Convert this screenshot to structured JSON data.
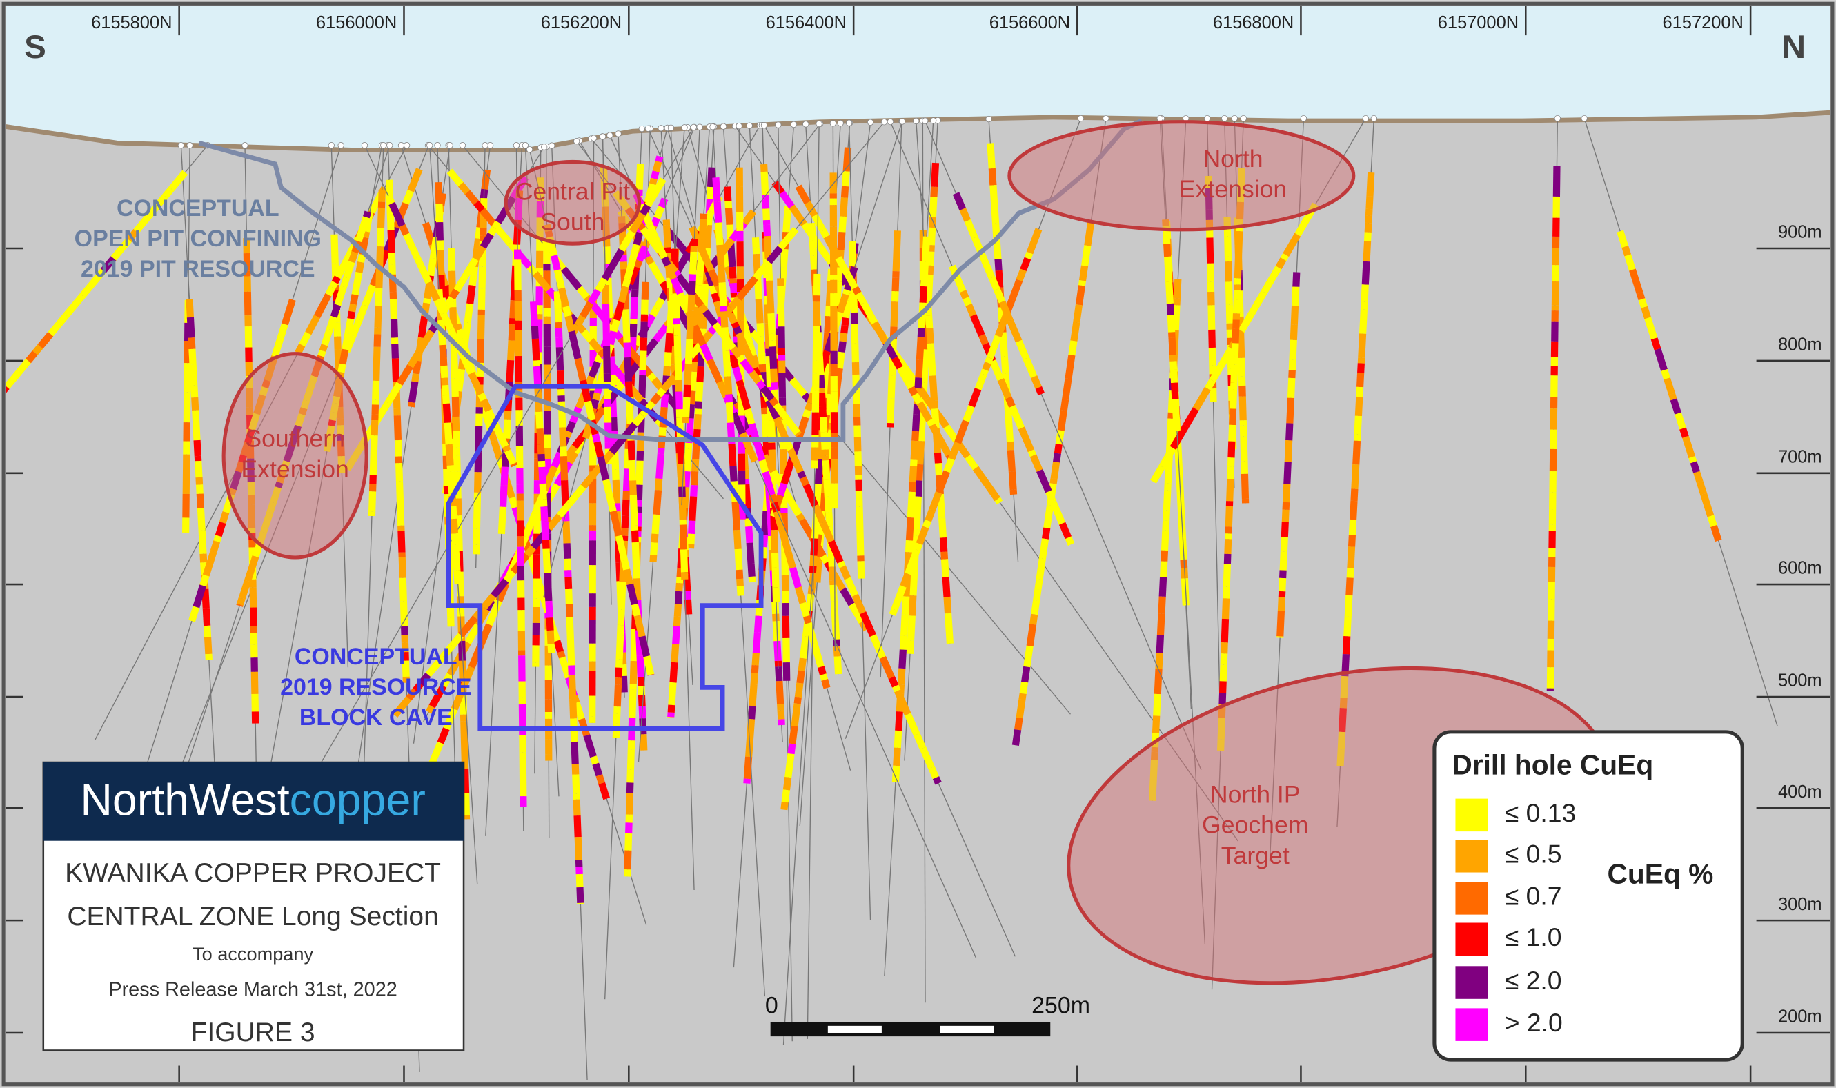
{
  "header": {
    "south_label": "S",
    "north_label": "N"
  },
  "northings": [
    "6155800N",
    "6156000N",
    "6156200N",
    "6156400N",
    "6156600N",
    "6156800N",
    "6157000N",
    "6157200N"
  ],
  "elevations": [
    "900m",
    "800m",
    "700m",
    "600m",
    "500m",
    "400m",
    "300m",
    "200m"
  ],
  "zones": {
    "southern_extension": [
      "Southern",
      "Extension"
    ],
    "central_pit_south": [
      "Central Pit",
      "South"
    ],
    "north_extension": [
      "North",
      "Extension"
    ],
    "north_ip_target": [
      "North IP",
      "Geochem",
      "Target"
    ]
  },
  "pit_outline_label": [
    "CONCEPTUAL",
    "OPEN PIT CONFINING",
    "2019 PIT RESOURCE"
  ],
  "block_cave_label": [
    "CONCEPTUAL",
    "2019 RESOURCE",
    "BLOCK CAVE"
  ],
  "logo": {
    "north_west": "NorthWest",
    "copper": "copper"
  },
  "title_block": [
    "KWANIKA COPPER PROJECT",
    "CENTRAL ZONE Long Section",
    "To accompany",
    "Press Release March 31st, 2022",
    "FIGURE 3"
  ],
  "scale_bar": {
    "start": "0",
    "end": "250m"
  },
  "legend": {
    "title": "Drill hole CuEq",
    "unit": "CuEq %",
    "items": [
      {
        "label": "≤ 0.13",
        "color": "#ffff00"
      },
      {
        "label": "≤ 0.5",
        "color": "#ffa500"
      },
      {
        "label": "≤ 0.7",
        "color": "#ff6a00"
      },
      {
        "label": "≤ 1.0",
        "color": "#ff0000"
      },
      {
        "label": "≤ 2.0",
        "color": "#800080"
      },
      {
        "label": "> 2.0",
        "color": "#ff00ff"
      }
    ]
  }
}
